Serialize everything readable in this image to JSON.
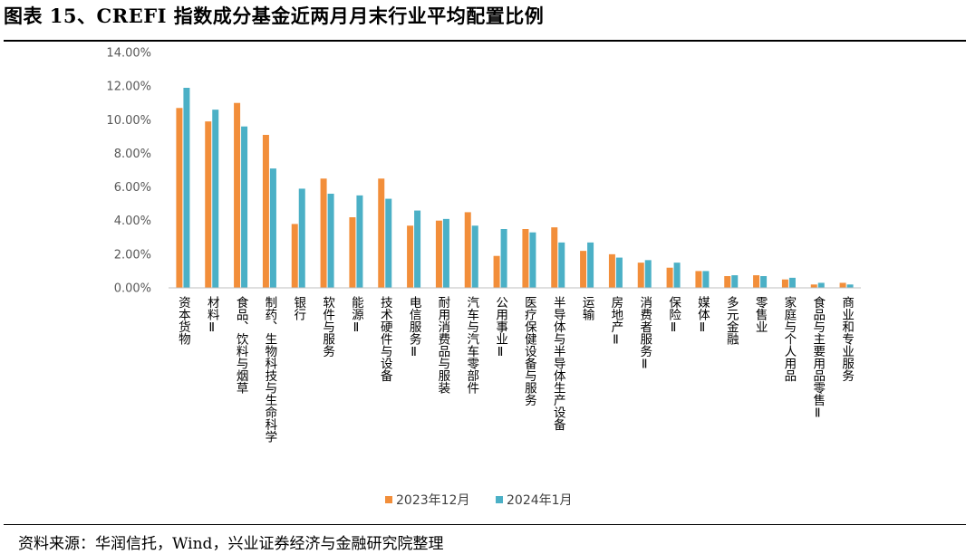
{
  "figure": {
    "title": "图表 15、CREFI 指数成分基金近两月月末行业平均配置比例",
    "source": "资料来源：华润信托，Wind，兴业证券经济与金融研究院整理"
  },
  "colors": {
    "series1": "#f28e3a",
    "series2": "#4bb0c6",
    "grid": "#d9d9d9",
    "axis": "#bfbfbf"
  },
  "chart_data": {
    "type": "bar",
    "title": "",
    "xlabel": "",
    "ylabel": "",
    "ylim": [
      0,
      14
    ],
    "yticks": [
      0,
      2,
      4,
      6,
      8,
      10,
      12,
      14
    ],
    "ytick_labels": [
      "0.00%",
      "2.00%",
      "4.00%",
      "6.00%",
      "8.00%",
      "10.00%",
      "12.00%",
      "14.00%"
    ],
    "grid": false,
    "legend_position": "bottom",
    "categories": [
      "资本货物",
      "材料Ⅱ",
      "食品、饮料与烟草",
      "制药、生物科技与生命科学",
      "银行",
      "软件与服务",
      "能源Ⅱ",
      "技术硬件与设备",
      "电信服务Ⅱ",
      "耐用消费品与服装",
      "汽车与汽车零部件",
      "公用事业Ⅱ",
      "医疗保健设备与服务",
      "半导体与半导体生产设备",
      "运输",
      "房地产Ⅱ",
      "消费者服务Ⅱ",
      "保险Ⅱ",
      "媒体Ⅱ",
      "多元金融",
      "零售业",
      "家庭与个人用品",
      "食品与主要用品零售Ⅱ",
      "商业和专业服务"
    ],
    "series": [
      {
        "name": "2023年12月",
        "values": [
          10.7,
          9.9,
          11.0,
          9.1,
          3.8,
          6.5,
          4.2,
          6.5,
          3.7,
          4.0,
          4.5,
          1.9,
          3.5,
          3.6,
          2.2,
          2.0,
          1.5,
          1.2,
          1.0,
          0.7,
          0.75,
          0.5,
          0.2,
          0.3
        ]
      },
      {
        "name": "2024年1月",
        "values": [
          11.9,
          10.6,
          9.6,
          7.1,
          5.9,
          5.6,
          5.5,
          5.3,
          4.6,
          4.1,
          3.7,
          3.5,
          3.3,
          2.7,
          2.7,
          1.8,
          1.65,
          1.5,
          1.0,
          0.75,
          0.7,
          0.6,
          0.3,
          0.2
        ]
      }
    ]
  }
}
